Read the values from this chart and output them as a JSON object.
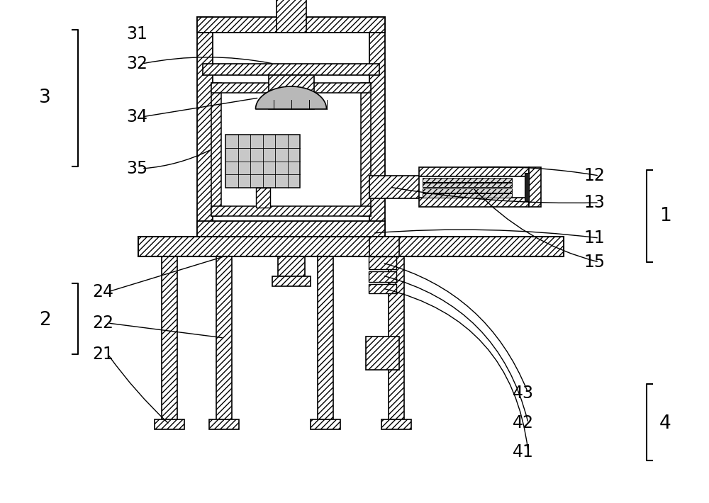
{
  "bg_color": "#ffffff",
  "line_color": "#000000",
  "hatch_color": "#000000",
  "label_color": "#000000",
  "figsize": [
    10.0,
    7.1
  ],
  "dpi": 100,
  "xlim": [
    0,
    1000
  ],
  "ylim": [
    0,
    710
  ]
}
